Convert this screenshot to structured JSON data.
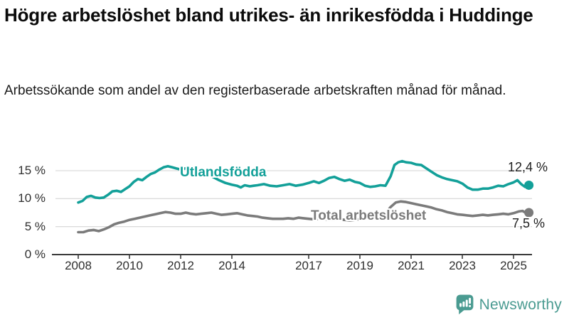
{
  "page": {
    "title": "Högre arbetslöshet bland utrikes- än inrikesfödda i Huddinge",
    "subtitle": "Arbetssökande som andel av den registerbaserade arbetskraften månad för månad."
  },
  "branding": {
    "logo_text": "Newsworthy",
    "logo_icon": "speech-bubble-with-bar-chart-and-exclamation",
    "logo_color": "#4a9b91"
  },
  "theme": {
    "background": "#ffffff",
    "grid_color": "#dcdcdc",
    "axis_color": "#3a3a3a",
    "tick_text_color": "#2f2f2f",
    "value_label_color": "#1f1f1f"
  },
  "chart_data": {
    "type": "line",
    "title": "",
    "xlabel": "",
    "ylabel": "",
    "x_axis": {
      "ticks": [
        2008,
        2010,
        2012,
        2014,
        2017,
        2019,
        2021,
        2023,
        2025
      ],
      "range": [
        2007.9,
        2025.8
      ]
    },
    "y_axis": {
      "ticks": [
        {
          "value": 15,
          "label": "15 %"
        },
        {
          "value": 10,
          "label": "10 %"
        },
        {
          "value": 5,
          "label": "5 %"
        },
        {
          "value": 0,
          "label": "0 %"
        }
      ],
      "range": [
        0,
        17.5
      ],
      "grid": true
    },
    "legend_position": "inline-labels",
    "series": [
      {
        "name": "Utlandsfödda",
        "color": "#13a099",
        "end_value": 12.4,
        "end_label": "12,4 %",
        "points": [
          [
            2008.0,
            9.3
          ],
          [
            2008.17,
            9.6
          ],
          [
            2008.33,
            10.3
          ],
          [
            2008.5,
            10.5
          ],
          [
            2008.67,
            10.2
          ],
          [
            2008.83,
            10.1
          ],
          [
            2009.0,
            10.2
          ],
          [
            2009.17,
            10.7
          ],
          [
            2009.33,
            11.3
          ],
          [
            2009.5,
            11.4
          ],
          [
            2009.67,
            11.2
          ],
          [
            2009.83,
            11.7
          ],
          [
            2010.0,
            12.2
          ],
          [
            2010.17,
            13.0
          ],
          [
            2010.33,
            13.5
          ],
          [
            2010.5,
            13.3
          ],
          [
            2010.67,
            13.9
          ],
          [
            2010.83,
            14.4
          ],
          [
            2011.0,
            14.7
          ],
          [
            2011.17,
            15.2
          ],
          [
            2011.33,
            15.6
          ],
          [
            2011.5,
            15.8
          ],
          [
            2011.67,
            15.6
          ],
          [
            2011.83,
            15.4
          ],
          [
            2012.0,
            15.2
          ],
          [
            2012.17,
            15.4
          ],
          [
            2012.33,
            15.5
          ],
          [
            2012.5,
            15.3
          ],
          [
            2012.67,
            15.1
          ],
          [
            2012.83,
            14.8
          ],
          [
            2013.0,
            14.5
          ],
          [
            2013.25,
            13.9
          ],
          [
            2013.5,
            13.3
          ],
          [
            2013.75,
            12.8
          ],
          [
            2014.0,
            12.5
          ],
          [
            2014.2,
            12.3
          ],
          [
            2014.35,
            12.0
          ],
          [
            2014.5,
            12.4
          ],
          [
            2014.7,
            12.2
          ],
          [
            2014.85,
            12.3
          ],
          [
            2015.0,
            12.4
          ],
          [
            2015.25,
            12.6
          ],
          [
            2015.5,
            12.3
          ],
          [
            2015.75,
            12.2
          ],
          [
            2016.0,
            12.4
          ],
          [
            2016.25,
            12.6
          ],
          [
            2016.5,
            12.3
          ],
          [
            2016.75,
            12.5
          ],
          [
            2017.0,
            12.8
          ],
          [
            2017.2,
            13.1
          ],
          [
            2017.4,
            12.8
          ],
          [
            2017.6,
            13.2
          ],
          [
            2017.8,
            13.7
          ],
          [
            2018.0,
            13.9
          ],
          [
            2018.2,
            13.5
          ],
          [
            2018.4,
            13.2
          ],
          [
            2018.6,
            13.4
          ],
          [
            2018.8,
            13.0
          ],
          [
            2019.0,
            12.8
          ],
          [
            2019.2,
            12.3
          ],
          [
            2019.4,
            12.1
          ],
          [
            2019.6,
            12.2
          ],
          [
            2019.8,
            12.4
          ],
          [
            2020.0,
            12.3
          ],
          [
            2020.2,
            14.0
          ],
          [
            2020.35,
            16.0
          ],
          [
            2020.5,
            16.5
          ],
          [
            2020.65,
            16.7
          ],
          [
            2020.8,
            16.5
          ],
          [
            2021.0,
            16.4
          ],
          [
            2021.2,
            16.1
          ],
          [
            2021.4,
            16.0
          ],
          [
            2021.6,
            15.4
          ],
          [
            2021.8,
            14.8
          ],
          [
            2022.0,
            14.2
          ],
          [
            2022.2,
            13.8
          ],
          [
            2022.4,
            13.5
          ],
          [
            2022.6,
            13.3
          ],
          [
            2022.8,
            13.1
          ],
          [
            2023.0,
            12.7
          ],
          [
            2023.2,
            12.0
          ],
          [
            2023.4,
            11.6
          ],
          [
            2023.6,
            11.6
          ],
          [
            2023.8,
            11.8
          ],
          [
            2024.0,
            11.8
          ],
          [
            2024.2,
            12.0
          ],
          [
            2024.4,
            12.3
          ],
          [
            2024.6,
            12.2
          ],
          [
            2024.8,
            12.6
          ],
          [
            2025.0,
            12.9
          ],
          [
            2025.15,
            13.3
          ],
          [
            2025.3,
            12.6
          ],
          [
            2025.45,
            12.1
          ],
          [
            2025.6,
            12.4
          ]
        ]
      },
      {
        "name": "Total arbetslöshet",
        "color": "#7b7b7b",
        "end_value": 7.5,
        "end_label": "7,5 %",
        "points": [
          [
            2008.0,
            4.0
          ],
          [
            2008.2,
            4.0
          ],
          [
            2008.4,
            4.3
          ],
          [
            2008.6,
            4.4
          ],
          [
            2008.8,
            4.2
          ],
          [
            2009.0,
            4.5
          ],
          [
            2009.2,
            4.9
          ],
          [
            2009.4,
            5.4
          ],
          [
            2009.6,
            5.7
          ],
          [
            2009.8,
            5.9
          ],
          [
            2010.0,
            6.2
          ],
          [
            2010.2,
            6.4
          ],
          [
            2010.4,
            6.6
          ],
          [
            2010.6,
            6.8
          ],
          [
            2010.8,
            7.0
          ],
          [
            2011.0,
            7.2
          ],
          [
            2011.2,
            7.4
          ],
          [
            2011.4,
            7.6
          ],
          [
            2011.6,
            7.5
          ],
          [
            2011.8,
            7.3
          ],
          [
            2012.0,
            7.3
          ],
          [
            2012.2,
            7.5
          ],
          [
            2012.4,
            7.3
          ],
          [
            2012.6,
            7.2
          ],
          [
            2012.8,
            7.3
          ],
          [
            2013.0,
            7.4
          ],
          [
            2013.2,
            7.5
          ],
          [
            2013.4,
            7.3
          ],
          [
            2013.6,
            7.1
          ],
          [
            2013.8,
            7.2
          ],
          [
            2014.0,
            7.3
          ],
          [
            2014.2,
            7.4
          ],
          [
            2014.4,
            7.2
          ],
          [
            2014.6,
            7.0
          ],
          [
            2014.8,
            6.9
          ],
          [
            2015.0,
            6.8
          ],
          [
            2015.2,
            6.6
          ],
          [
            2015.4,
            6.5
          ],
          [
            2015.6,
            6.4
          ],
          [
            2015.8,
            6.4
          ],
          [
            2016.0,
            6.4
          ],
          [
            2016.2,
            6.5
          ],
          [
            2016.4,
            6.4
          ],
          [
            2016.6,
            6.6
          ],
          [
            2016.8,
            6.5
          ],
          [
            2017.0,
            6.4
          ],
          [
            2017.2,
            6.3
          ],
          [
            2017.4,
            6.4
          ],
          [
            2017.6,
            6.3
          ],
          [
            2017.8,
            6.2
          ],
          [
            2018.0,
            6.2
          ],
          [
            2018.2,
            6.3
          ],
          [
            2018.4,
            6.2
          ],
          [
            2018.6,
            6.1
          ],
          [
            2018.8,
            6.2
          ],
          [
            2019.0,
            6.3
          ],
          [
            2019.2,
            6.4
          ],
          [
            2019.4,
            6.5
          ],
          [
            2019.6,
            6.7
          ],
          [
            2019.8,
            7.0
          ],
          [
            2020.0,
            7.3
          ],
          [
            2020.2,
            8.5
          ],
          [
            2020.4,
            9.3
          ],
          [
            2020.6,
            9.5
          ],
          [
            2020.8,
            9.4
          ],
          [
            2021.0,
            9.2
          ],
          [
            2021.2,
            9.0
          ],
          [
            2021.4,
            8.8
          ],
          [
            2021.6,
            8.6
          ],
          [
            2021.8,
            8.4
          ],
          [
            2022.0,
            8.1
          ],
          [
            2022.2,
            7.9
          ],
          [
            2022.4,
            7.6
          ],
          [
            2022.6,
            7.4
          ],
          [
            2022.8,
            7.2
          ],
          [
            2023.0,
            7.1
          ],
          [
            2023.2,
            7.0
          ],
          [
            2023.4,
            6.9
          ],
          [
            2023.6,
            7.0
          ],
          [
            2023.8,
            7.1
          ],
          [
            2024.0,
            7.0
          ],
          [
            2024.2,
            7.1
          ],
          [
            2024.4,
            7.2
          ],
          [
            2024.6,
            7.3
          ],
          [
            2024.8,
            7.2
          ],
          [
            2025.0,
            7.4
          ],
          [
            2025.2,
            7.7
          ],
          [
            2025.35,
            7.8
          ],
          [
            2025.5,
            7.4
          ],
          [
            2025.6,
            7.5
          ]
        ]
      }
    ]
  }
}
